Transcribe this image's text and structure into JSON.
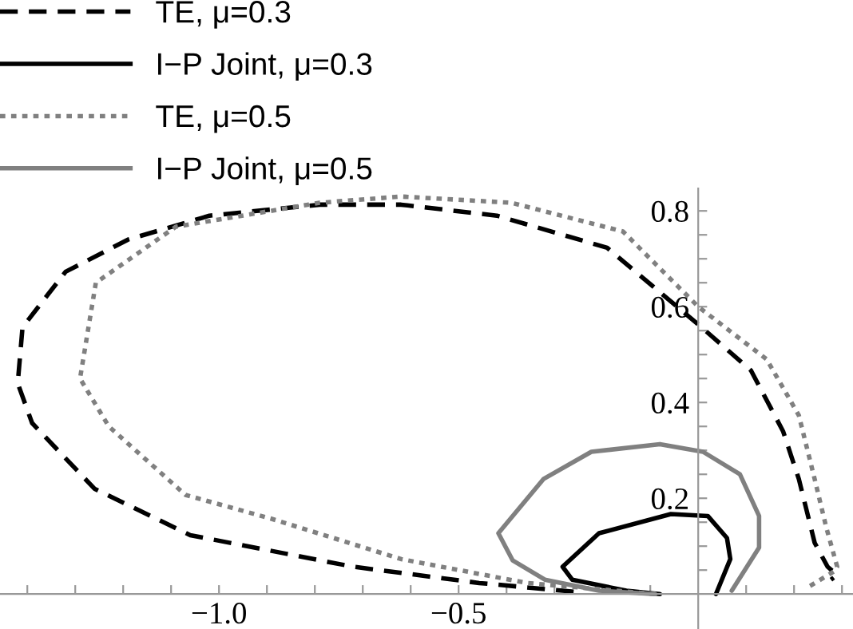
{
  "chart_data": {
    "type": "line",
    "legend": "top left",
    "grid": false,
    "xlim": [
      -1.457,
      0.323
    ],
    "ylim": [
      -0.073,
      0.847
    ],
    "xticks": [
      {
        "value": -1.4,
        "label": null
      },
      {
        "value": -1.3,
        "label": null
      },
      {
        "value": -1.2,
        "label": null
      },
      {
        "value": -1.1,
        "label": null
      },
      {
        "value": -1.0,
        "label": "−1.0"
      },
      {
        "value": -0.9,
        "label": null
      },
      {
        "value": -0.8,
        "label": null
      },
      {
        "value": -0.7,
        "label": null
      },
      {
        "value": -0.6,
        "label": null
      },
      {
        "value": -0.5,
        "label": "−0.5"
      },
      {
        "value": -0.4,
        "label": null
      },
      {
        "value": -0.3,
        "label": null
      },
      {
        "value": -0.2,
        "label": null
      },
      {
        "value": -0.1,
        "label": null
      },
      {
        "value": 0.1,
        "label": null
      },
      {
        "value": 0.2,
        "label": null
      },
      {
        "value": 0.3,
        "label": null
      }
    ],
    "yticks": [
      {
        "value": 0.05,
        "label": null
      },
      {
        "value": 0.1,
        "label": null
      },
      {
        "value": 0.15,
        "label": null
      },
      {
        "value": 0.2,
        "label": "0.2"
      },
      {
        "value": 0.25,
        "label": null
      },
      {
        "value": 0.3,
        "label": null
      },
      {
        "value": 0.35,
        "label": null
      },
      {
        "value": 0.4,
        "label": "0.4"
      },
      {
        "value": 0.45,
        "label": null
      },
      {
        "value": 0.5,
        "label": null
      },
      {
        "value": 0.55,
        "label": null
      },
      {
        "value": 0.6,
        "label": "0.6"
      },
      {
        "value": 0.65,
        "label": null
      },
      {
        "value": 0.7,
        "label": null
      },
      {
        "value": 0.75,
        "label": null
      },
      {
        "value": 0.8,
        "label": "0.8"
      }
    ],
    "series": [
      {
        "name": "TE, μ=0.3",
        "color": "#000000",
        "line_style": "dashed",
        "x": [
          -0.26,
          -0.457,
          -0.72,
          -1.06,
          -1.26,
          -1.39,
          -1.42,
          -1.41,
          -1.32,
          -1.19,
          -1.02,
          -0.79,
          -0.62,
          -0.42,
          -0.19,
          0,
          0.11,
          0.177,
          0.21,
          0.243,
          0.27,
          0.29,
          0.277
        ],
        "values": [
          0.005,
          0.023,
          0.057,
          0.123,
          0.22,
          0.357,
          0.44,
          0.557,
          0.673,
          0.74,
          0.79,
          0.813,
          0.813,
          0.79,
          0.723,
          0.563,
          0.467,
          0.34,
          0.24,
          0.107,
          0.057,
          0.04,
          0.03
        ]
      },
      {
        "name": "I−P Joint, μ=0.3",
        "color": "#000000",
        "line_style": "solid",
        "x": [
          0.037,
          0.067,
          0.06,
          0.02,
          -0.057,
          -0.207,
          -0.283,
          -0.263,
          -0.15,
          -0.08
        ],
        "values": [
          0,
          0.073,
          0.117,
          0.163,
          0.167,
          0.127,
          0.057,
          0.03,
          0.007,
          0
        ]
      },
      {
        "name": "TE, μ=0.5",
        "color": "#808080",
        "line_style": "dotted",
        "x": [
          -0.09,
          -0.357,
          -0.62,
          -0.89,
          -1.07,
          -1.23,
          -1.29,
          -1.257,
          -1.09,
          -0.79,
          -0.62,
          -0.39,
          -0.157,
          0,
          0.143,
          0.21,
          0.243,
          0.267,
          0.29,
          0.283,
          0.227
        ],
        "values": [
          0,
          0.023,
          0.073,
          0.157,
          0.207,
          0.35,
          0.45,
          0.65,
          0.767,
          0.817,
          0.83,
          0.817,
          0.757,
          0.6,
          0.49,
          0.373,
          0.24,
          0.14,
          0.057,
          0.047,
          0.013
        ]
      },
      {
        "name": "I−P Joint, μ=0.5",
        "color": "#808080",
        "line_style": "solid",
        "x": [
          0.07,
          0.127,
          0.127,
          0.087,
          0.01,
          -0.08,
          -0.223,
          -0.323,
          -0.417,
          -0.387,
          -0.32,
          -0.207,
          -0.09
        ],
        "values": [
          0.007,
          0.097,
          0.163,
          0.25,
          0.297,
          0.313,
          0.297,
          0.24,
          0.127,
          0.07,
          0.03,
          0.007,
          0
        ]
      }
    ]
  }
}
